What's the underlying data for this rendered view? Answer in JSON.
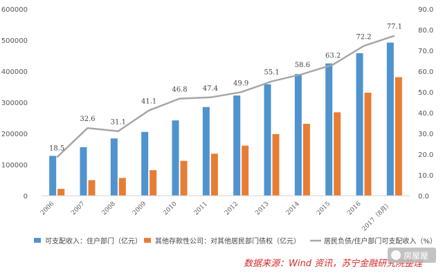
{
  "chart_data": {
    "type": "bar",
    "categories": [
      "2006",
      "2007",
      "2008",
      "2009",
      "2010",
      "2011",
      "2012",
      "2013",
      "2014",
      "2015",
      "2016",
      "2017（8月）"
    ],
    "series": [
      {
        "name": "可支配收入：住户部门（亿元）",
        "type": "bar",
        "axis": "left",
        "color": "#4f93cf",
        "values": [
          128000,
          156000,
          184000,
          205000,
          242000,
          285000,
          322000,
          358000,
          391000,
          425000,
          458000,
          492000
        ]
      },
      {
        "name": "其他存款性公司：对其他居民部门债权（亿元）",
        "type": "bar",
        "axis": "left",
        "color": "#e77d35",
        "values": [
          22000,
          50000,
          57000,
          82000,
          112000,
          135000,
          161000,
          198000,
          231000,
          268000,
          331000,
          381000
        ]
      },
      {
        "name": "居民负债/住户部门可支配收入（%）",
        "type": "line",
        "axis": "right",
        "color": "#a6a6a6",
        "values": [
          18.5,
          32.6,
          31.1,
          41.1,
          46.8,
          47.4,
          49.9,
          55.1,
          58.6,
          63.2,
          72.2,
          77.1
        ]
      }
    ],
    "line_labels": [
      "18.5",
      "32.6",
      "31.1",
      "41.1",
      "46.8",
      "47.4",
      "49.9",
      "55.1",
      "58.6",
      "63.2",
      "72.2",
      "77.1"
    ],
    "ylim_left": [
      0,
      600000
    ],
    "ylim_right": [
      0,
      90
    ],
    "yticks_left": [
      "0",
      "100000",
      "200000",
      "300000",
      "400000",
      "500000",
      "600000"
    ],
    "yticks_right": [
      "0.0",
      "10.0",
      "20.0",
      "30.0",
      "40.0",
      "50.0",
      "60.0",
      "70.0",
      "80.0",
      "90.0"
    ],
    "legend_position": "bottom",
    "grid": false,
    "title": "",
    "xlabel": "",
    "ylabel": ""
  },
  "source": "数据来源：Wind 资讯，苏宁金融研究院整理",
  "watermark": "房屋屋"
}
